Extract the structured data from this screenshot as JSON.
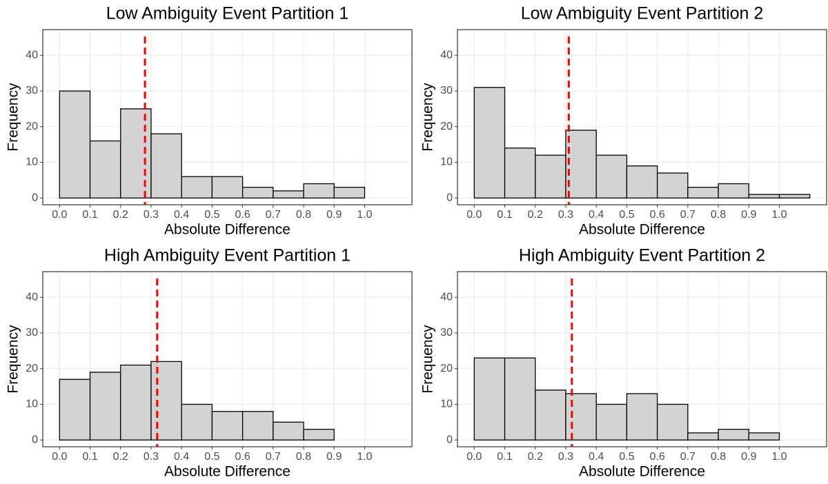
{
  "chart_data": [
    {
      "type": "histogram",
      "title": "Low Ambiguity Event Partition 1",
      "x_label": "Absolute Difference",
      "y_label": "Frequency",
      "bins": [
        0,
        0.1,
        0.2,
        0.3,
        0.4,
        0.5,
        0.6,
        0.7,
        0.8,
        0.9,
        1.0,
        1.1
      ],
      "counts": [
        30,
        16,
        25,
        18,
        6,
        6,
        3,
        2,
        4,
        3,
        0
      ],
      "vline": 0.28,
      "vline_color": "#ff0000",
      "color": "#d3d3d3",
      "xlim": [
        -0.055,
        1.155
      ],
      "ylim": [
        -1.9,
        47.2
      ],
      "xticks": [
        {
          "value": 0,
          "label": "0.0"
        },
        0.1,
        0.2,
        0.3,
        0.4,
        0.5,
        0.6,
        0.7,
        0.8,
        0.9,
        {
          "value": 1,
          "label": "1.0"
        }
      ],
      "yticks": [
        0,
        10,
        20,
        30,
        40
      ],
      "grid": true
    },
    {
      "type": "histogram",
      "title": "Low Ambiguity Event Partition 2",
      "x_label": "Absolute Difference",
      "y_label": "Frequency",
      "bins": [
        0,
        0.1,
        0.2,
        0.3,
        0.4,
        0.5,
        0.6,
        0.7,
        0.8,
        0.9,
        1.0,
        1.1
      ],
      "counts": [
        31,
        14,
        12,
        19,
        12,
        9,
        7,
        3,
        4,
        1,
        1
      ],
      "vline": 0.31,
      "vline_color": "#ff0000",
      "color": "#d3d3d3",
      "xlim": [
        -0.055,
        1.155
      ],
      "ylim": [
        -1.9,
        47.2
      ],
      "xticks": [
        {
          "value": 0,
          "label": "0.0"
        },
        0.1,
        0.2,
        0.3,
        0.4,
        0.5,
        0.6,
        0.7,
        0.8,
        0.9,
        {
          "value": 1,
          "label": "1.0"
        }
      ],
      "yticks": [
        0,
        10,
        20,
        30,
        40
      ],
      "grid": true
    },
    {
      "type": "histogram",
      "title": "High Ambiguity Event Partition 1",
      "x_label": "Absolute Difference",
      "y_label": "Frequency",
      "bins": [
        0,
        0.1,
        0.2,
        0.3,
        0.4,
        0.5,
        0.6,
        0.7,
        0.8,
        0.9,
        1.0,
        1.1
      ],
      "counts": [
        17,
        19,
        21,
        22,
        10,
        8,
        8,
        5,
        3,
        0,
        0
      ],
      "vline": 0.32,
      "vline_color": "#ff0000",
      "color": "#d3d3d3",
      "xlim": [
        -0.055,
        1.155
      ],
      "ylim": [
        -1.9,
        47.2
      ],
      "xticks": [
        {
          "value": 0,
          "label": "0.0"
        },
        0.1,
        0.2,
        0.3,
        0.4,
        0.5,
        0.6,
        0.7,
        0.8,
        0.9,
        {
          "value": 1,
          "label": "1.0"
        }
      ],
      "yticks": [
        0,
        10,
        20,
        30,
        40
      ],
      "grid": true
    },
    {
      "type": "histogram",
      "title": "High Ambiguity Event Partition 2",
      "x_label": "Absolute Difference",
      "y_label": "Frequency",
      "bins": [
        0,
        0.1,
        0.2,
        0.3,
        0.4,
        0.5,
        0.6,
        0.7,
        0.8,
        0.9,
        1.0,
        1.1
      ],
      "counts": [
        23,
        23,
        14,
        13,
        10,
        13,
        10,
        2,
        3,
        2,
        0
      ],
      "vline": 0.32,
      "vline_color": "#ff0000",
      "color": "#d3d3d3",
      "xlim": [
        -0.055,
        1.155
      ],
      "ylim": [
        -1.9,
        47.2
      ],
      "xticks": [
        {
          "value": 0,
          "label": "0.0"
        },
        0.1,
        0.2,
        0.3,
        0.4,
        0.5,
        0.6,
        0.7,
        0.8,
        0.9,
        {
          "value": 1,
          "label": "1.0"
        }
      ],
      "yticks": [
        0,
        10,
        20,
        30,
        40
      ],
      "grid": true
    }
  ]
}
